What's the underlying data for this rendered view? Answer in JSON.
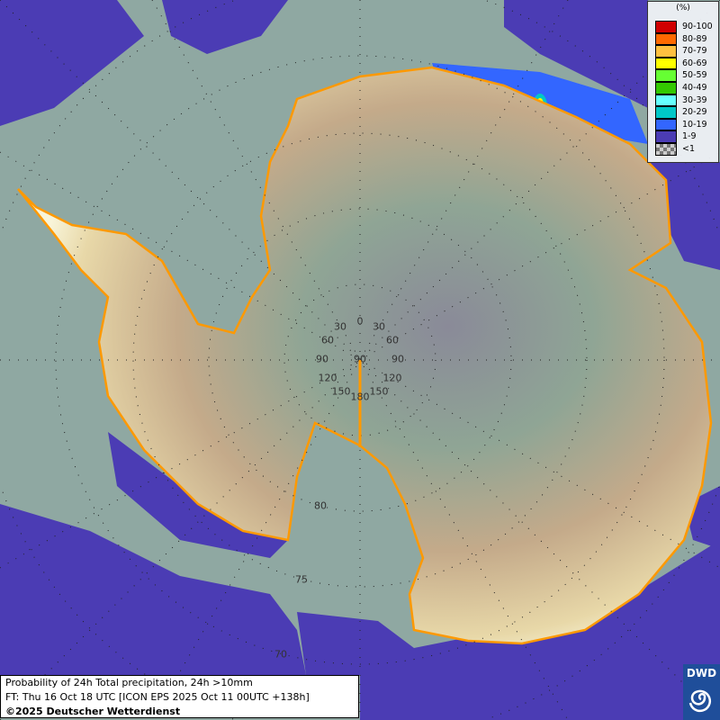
{
  "legend": {
    "unit": "(%)",
    "items": [
      {
        "label": "90-100",
        "color": "#d00000"
      },
      {
        "label": "80-89",
        "color": "#ff6a00"
      },
      {
        "label": "70-79",
        "color": "#ffc040"
      },
      {
        "label": "60-69",
        "color": "#ffff00"
      },
      {
        "label": "50-59",
        "color": "#66ff33"
      },
      {
        "label": "40-49",
        "color": "#33c800"
      },
      {
        "label": "30-39",
        "color": "#66ffff"
      },
      {
        "label": "20-29",
        "color": "#00c8c8"
      },
      {
        "label": "10-19",
        "color": "#3366ff"
      },
      {
        "label": "1-9",
        "color": "#4b3cb4"
      },
      {
        "label": "<1",
        "color": "checker"
      }
    ]
  },
  "caption": {
    "line1": "Probability of 24h Total precipitation, 24h >10mm",
    "line2": "FT: Thu 16 Oct 18 UTC [ICON EPS 2025 Oct 11 00UTC +138h]",
    "line3": "©2025 Deutscher Wetterdienst"
  },
  "logo": {
    "text": "DWD"
  },
  "grid": {
    "longitude_labels": [
      "0",
      "30",
      "30",
      "60",
      "60",
      "90",
      "90",
      "90",
      "120",
      "120",
      "150",
      "150",
      "180"
    ],
    "latitude_labels": [
      "80",
      "75",
      "70"
    ]
  },
  "colors": {
    "ocean": "#8fa8a2",
    "coastline": "#ff9900",
    "precip_low": "#4b3cb4",
    "precip_mid": "#3366ff"
  }
}
